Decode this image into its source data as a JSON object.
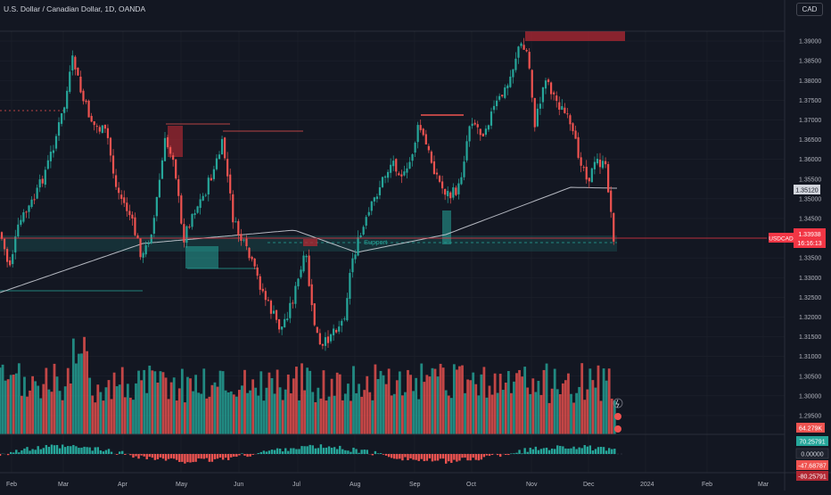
{
  "header": {
    "title": "U.S. Dollar / Canadian Dollar, 1D, OANDA",
    "currency_button": "CAD"
  },
  "price_axis": {
    "labels": [
      "1.39000",
      "1.38500",
      "1.38000",
      "1.37500",
      "1.37000",
      "1.36500",
      "1.36000",
      "1.35500",
      "1.35000",
      "1.34500",
      "1.34000",
      "1.33500",
      "1.33000",
      "1.32500",
      "1.32000",
      "1.31500",
      "1.31000",
      "1.30500",
      "1.30000",
      "1.29500"
    ],
    "values": [
      1.39,
      1.385,
      1.38,
      1.375,
      1.37,
      1.365,
      1.36,
      1.355,
      1.35,
      1.345,
      1.34,
      1.335,
      1.33,
      1.325,
      1.32,
      1.315,
      1.31,
      1.305,
      1.3,
      1.295
    ],
    "max": 1.3925,
    "min": 1.2925,
    "ma_badge": "1.35120",
    "symbol_badge": "USDCAD",
    "last_price": "1.33938",
    "countdown": "16:16:13"
  },
  "time_axis": {
    "labels": [
      "Feb",
      "Mar",
      "Apr",
      "May",
      "Jun",
      "Jul",
      "Aug",
      "Sep",
      "Oct",
      "Nov",
      "Dec",
      "2024",
      "Feb",
      "Mar"
    ]
  },
  "annotations": {
    "support_label": "Support"
  },
  "indicators": {
    "volume_value": "64.279K",
    "osc_upper": "70.25791",
    "osc_zero": "0.00000",
    "osc_lower1": "-47.68787",
    "osc_lower2": "-80.25791"
  },
  "colors": {
    "background": "#131722",
    "bull": "#26a69a",
    "bear": "#ef5350",
    "ma_line": "#d1d4dc",
    "support_zone": "#26a69a",
    "resistance_zone": "#b22833",
    "price_line": "#f23645"
  }
}
